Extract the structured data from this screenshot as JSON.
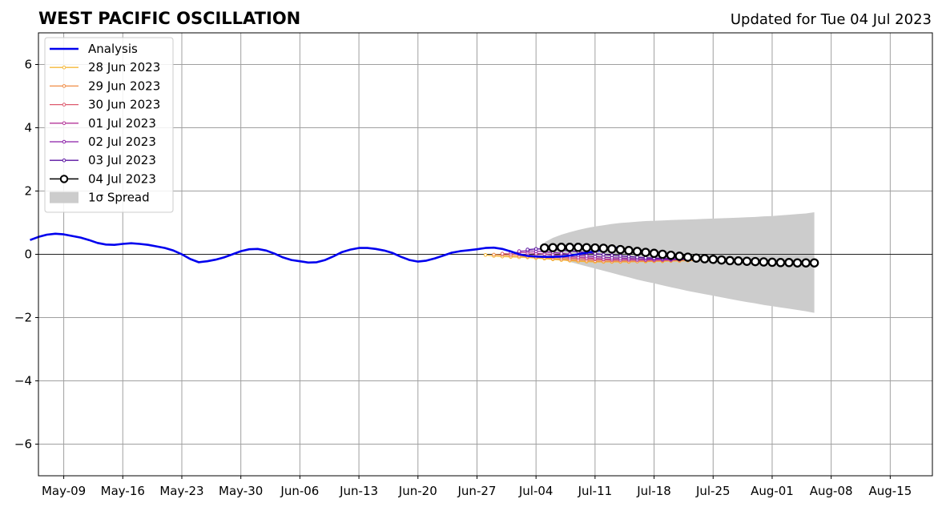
{
  "header": {
    "title": "WEST PACIFIC OSCILLATION",
    "updated": "Updated for Tue 04 Jul 2023"
  },
  "chart_data": {
    "type": "line",
    "title": "WEST PACIFIC OSCILLATION",
    "subtitle": "Updated for Tue 04 Jul 2023",
    "xlabel": "",
    "ylabel": "",
    "xlim": [
      "2023-05-06",
      "2023-08-20"
    ],
    "ylim": [
      -7,
      7
    ],
    "grid": true,
    "legend_position": "top-left",
    "x_ticks": [
      "May-09",
      "May-16",
      "May-23",
      "May-30",
      "Jun-06",
      "Jun-13",
      "Jun-20",
      "Jun-27",
      "Jul-04",
      "Jul-11",
      "Jul-18",
      "Jul-25",
      "Aug-01",
      "Aug-08",
      "Aug-15"
    ],
    "x_tick_dates": [
      "2023-05-09",
      "2023-05-16",
      "2023-05-23",
      "2023-05-30",
      "2023-06-06",
      "2023-06-13",
      "2023-06-20",
      "2023-06-27",
      "2023-07-04",
      "2023-07-11",
      "2023-07-18",
      "2023-07-25",
      "2023-08-01",
      "2023-08-08",
      "2023-08-15"
    ],
    "y_ticks": [
      6,
      4,
      2,
      0,
      -2,
      -4,
      -6
    ],
    "y_tick_labels": [
      "6",
      "4",
      "2",
      "0",
      "−2",
      "−4",
      "−6"
    ],
    "analysis": {
      "name": "Analysis",
      "color": "#0000ee",
      "start": "2023-05-05",
      "values": [
        0.45,
        0.55,
        0.62,
        0.65,
        0.63,
        0.58,
        0.53,
        0.45,
        0.36,
        0.31,
        0.3,
        0.33,
        0.35,
        0.33,
        0.3,
        0.25,
        0.2,
        0.12,
        0.0,
        -0.15,
        -0.25,
        -0.22,
        -0.17,
        -0.1,
        0.0,
        0.1,
        0.16,
        0.17,
        0.12,
        0.02,
        -0.1,
        -0.18,
        -0.22,
        -0.26,
        -0.25,
        -0.18,
        -0.06,
        0.07,
        0.15,
        0.2,
        0.2,
        0.17,
        0.12,
        0.04,
        -0.08,
        -0.18,
        -0.23,
        -0.2,
        -0.13,
        -0.04,
        0.05,
        0.1,
        0.13,
        0.16,
        0.2,
        0.21,
        0.17,
        0.09,
        0.0,
        -0.05,
        -0.07,
        -0.08,
        -0.08,
        -0.07,
        -0.04,
        0.0,
        0.05,
        0.1,
        0.14,
        0.19,
        0.22
      ]
    },
    "forecasts": [
      {
        "name": "28 Jun 2023",
        "color": "#f5b83a",
        "start": "2023-06-28",
        "values": [
          -0.02,
          -0.05,
          -0.07,
          -0.08,
          -0.09,
          -0.1,
          -0.12,
          -0.14,
          -0.16,
          -0.18,
          -0.2,
          -0.22,
          -0.23,
          -0.24,
          -0.24,
          -0.24,
          -0.24,
          -0.24,
          -0.23,
          -0.23,
          -0.22,
          -0.22,
          -0.21,
          -0.21,
          -0.2,
          -0.2
        ]
      },
      {
        "name": "29 Jun 2023",
        "color": "#f08c45",
        "start": "2023-06-29",
        "values": [
          -0.01,
          -0.02,
          -0.04,
          -0.05,
          -0.07,
          -0.09,
          -0.11,
          -0.13,
          -0.15,
          -0.17,
          -0.19,
          -0.2,
          -0.21,
          -0.22,
          -0.22,
          -0.22,
          -0.22,
          -0.22,
          -0.21,
          -0.21,
          -0.2,
          -0.2,
          -0.19,
          -0.19,
          -0.18,
          -0.18
        ]
      },
      {
        "name": "30 Jun 2023",
        "color": "#dd5a6e",
        "start": "2023-06-30",
        "values": [
          0.02,
          0.01,
          0.0,
          -0.02,
          -0.04,
          -0.06,
          -0.08,
          -0.1,
          -0.12,
          -0.14,
          -0.15,
          -0.16,
          -0.17,
          -0.18,
          -0.18,
          -0.18,
          -0.18,
          -0.18,
          -0.18,
          -0.18,
          -0.17,
          -0.17,
          -0.17,
          -0.16,
          -0.16,
          -0.16
        ]
      },
      {
        "name": "01 Jul 2023",
        "color": "#b5379a",
        "start": "2023-07-01",
        "values": [
          0.06,
          0.06,
          0.05,
          0.03,
          0.01,
          -0.02,
          -0.04,
          -0.07,
          -0.09,
          -0.11,
          -0.13,
          -0.15,
          -0.16,
          -0.17,
          -0.17,
          -0.18,
          -0.18,
          -0.18,
          -0.18,
          -0.18,
          -0.17,
          -0.17,
          -0.17,
          -0.16,
          -0.16,
          -0.16
        ]
      },
      {
        "name": "02 Jul 2023",
        "color": "#8a1fa8",
        "start": "2023-07-02",
        "values": [
          0.1,
          0.11,
          0.1,
          0.08,
          0.06,
          0.03,
          0.0,
          -0.03,
          -0.05,
          -0.07,
          -0.09,
          -0.11,
          -0.12,
          -0.13,
          -0.14,
          -0.15,
          -0.15,
          -0.15,
          -0.16,
          -0.16,
          -0.16,
          -0.16,
          -0.16,
          -0.16,
          -0.15,
          -0.15
        ]
      },
      {
        "name": "03 Jul 2023",
        "color": "#5a12a0",
        "start": "2023-07-03",
        "values": [
          0.15,
          0.17,
          0.17,
          0.16,
          0.14,
          0.11,
          0.08,
          0.05,
          0.02,
          -0.01,
          -0.03,
          -0.05,
          -0.07,
          -0.09,
          -0.11,
          -0.12,
          -0.13,
          -0.14,
          -0.15,
          -0.15,
          -0.16,
          -0.16,
          -0.16,
          -0.16,
          -0.16,
          -0.16
        ]
      },
      {
        "name": "04 Jul 2023",
        "color": "#000000",
        "start": "2023-07-05",
        "values": [
          0.2,
          0.21,
          0.22,
          0.22,
          0.22,
          0.21,
          0.2,
          0.19,
          0.17,
          0.15,
          0.12,
          0.09,
          0.06,
          0.03,
          0.0,
          -0.03,
          -0.06,
          -0.09,
          -0.12,
          -0.14,
          -0.16,
          -0.18,
          -0.2,
          -0.21,
          -0.22,
          -0.23,
          -0.24,
          -0.25,
          -0.26,
          -0.26,
          -0.27,
          -0.27,
          -0.27
        ]
      }
    ],
    "spread": {
      "name": "1σ Spread",
      "color": "#cccccc",
      "start": "2023-07-05",
      "upper": [
        0.38,
        0.52,
        0.62,
        0.7,
        0.77,
        0.83,
        0.88,
        0.92,
        0.96,
        0.99,
        1.01,
        1.03,
        1.05,
        1.06,
        1.07,
        1.08,
        1.09,
        1.1,
        1.11,
        1.12,
        1.13,
        1.14,
        1.15,
        1.16,
        1.17,
        1.18,
        1.2,
        1.21,
        1.23,
        1.25,
        1.27,
        1.29,
        1.33
      ],
      "lower": [
        0.0,
        -0.08,
        -0.16,
        -0.24,
        -0.31,
        -0.38,
        -0.45,
        -0.52,
        -0.59,
        -0.66,
        -0.73,
        -0.8,
        -0.86,
        -0.92,
        -0.98,
        -1.04,
        -1.1,
        -1.16,
        -1.21,
        -1.26,
        -1.31,
        -1.36,
        -1.41,
        -1.46,
        -1.51,
        -1.55,
        -1.6,
        -1.64,
        -1.68,
        -1.72,
        -1.76,
        -1.8,
        -1.85
      ]
    }
  }
}
